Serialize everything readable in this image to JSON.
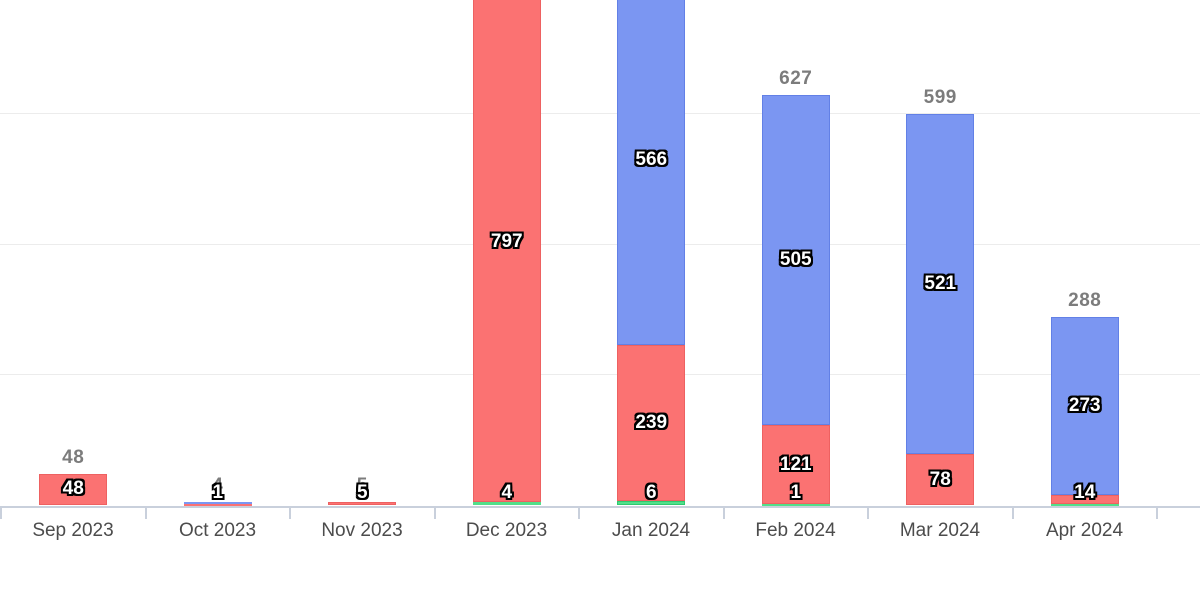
{
  "chart_data": {
    "type": "bar",
    "stacked": true,
    "orientation": "vertical",
    "grid": true,
    "legend": "none",
    "y_axis_labels_visible": false,
    "top_clipped_categories": [
      "Dec 2023",
      "Jan 2024"
    ],
    "gridline_values": [
      200,
      400,
      600
    ],
    "ylim_visible": [
      0,
      773
    ],
    "categories": [
      "Sep 2023",
      "Oct 2023",
      "Nov 2023",
      "Dec 2023",
      "Jan 2024",
      "Feb 2024",
      "Mar 2024",
      "Apr 2024"
    ],
    "series": [
      {
        "name": "green",
        "color": "#52df8a",
        "border_color": "#2fc96f",
        "values": [
          0,
          0,
          0,
          4,
          6,
          1,
          0,
          1
        ],
        "label_shown": [
          false,
          false,
          false,
          true,
          true,
          true,
          false,
          false
        ]
      },
      {
        "name": "red",
        "color": "#fb7272",
        "border_color": "#ee6161",
        "values": [
          48,
          1,
          5,
          797,
          239,
          121,
          78,
          14
        ],
        "label_shown": [
          true,
          true,
          true,
          true,
          true,
          true,
          true,
          true
        ]
      },
      {
        "name": "blue",
        "color": "#7b96f2",
        "border_color": "#6280e6",
        "values": [
          0,
          3,
          0,
          0,
          566,
          505,
          521,
          273
        ],
        "label_shown": [
          false,
          false,
          false,
          false,
          true,
          true,
          true,
          true
        ]
      }
    ],
    "totals_shown": [
      "48",
      "4",
      "5",
      null,
      null,
      "627",
      "599",
      "288"
    ]
  },
  "colors": {
    "gridline": "#ececec",
    "axis_line": "#c9d0dc",
    "tick": "#c9d0dc",
    "category_label": "#4c4c4c",
    "total_label": "#7c7c7c",
    "segment_label": "#ffffff"
  }
}
